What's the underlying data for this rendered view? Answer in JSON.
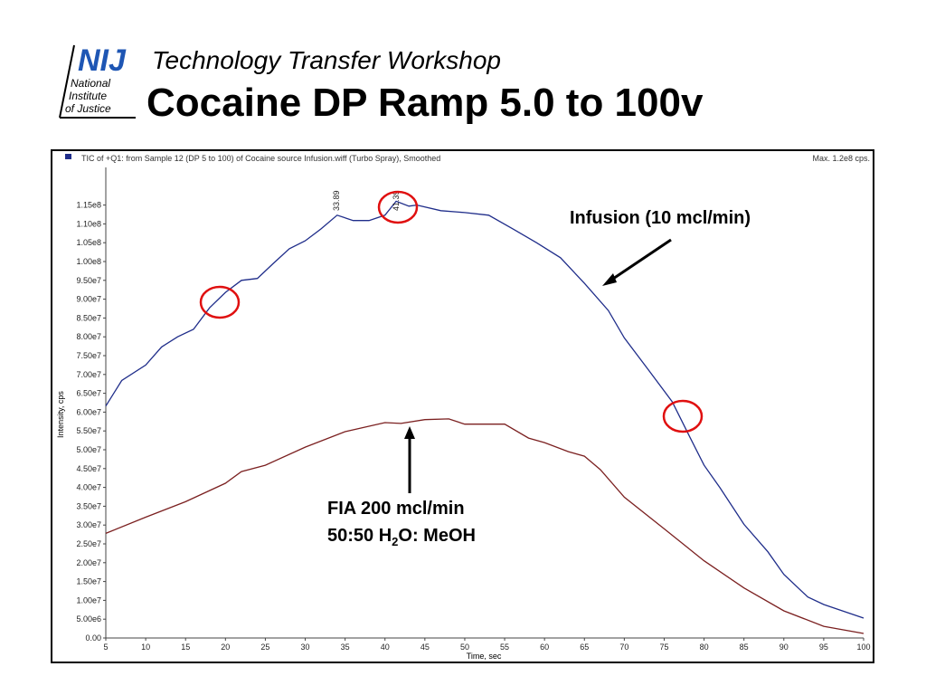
{
  "header": {
    "subtitle": "Technology Transfer Workshop",
    "title": "Cocaine DP Ramp 5.0 to 100v",
    "logo": {
      "mark": "NIJ",
      "lines": [
        "National",
        "Institute",
        "of Justice"
      ]
    }
  },
  "chart_data": {
    "type": "line",
    "title": "TIC of +Q1: from Sample 12 (DP 5 to 100) of Cocaine source Infusion.wiff (Turbo Spray), Smoothed",
    "max_label": "Max. 1.2e8 cps.",
    "x_label": "Time, sec",
    "y_label": "Intensity, cps",
    "xlim": [
      5,
      100
    ],
    "xticks": [
      5,
      10,
      15,
      20,
      25,
      30,
      35,
      40,
      45,
      50,
      55,
      60,
      65,
      70,
      75,
      80,
      85,
      90,
      95,
      100
    ],
    "ylim": [
      0,
      125000000
    ],
    "yticks": [
      {
        "value": 0,
        "label": "0.00"
      },
      {
        "value": 5000000,
        "label": "5.00e6"
      },
      {
        "value": 10000000,
        "label": "1.00e7"
      },
      {
        "value": 15000000,
        "label": "1.50e7"
      },
      {
        "value": 20000000,
        "label": "2.00e7"
      },
      {
        "value": 25000000,
        "label": "2.50e7"
      },
      {
        "value": 30000000,
        "label": "3.00e7"
      },
      {
        "value": 35000000,
        "label": "3.50e7"
      },
      {
        "value": 40000000,
        "label": "4.00e7"
      },
      {
        "value": 45000000,
        "label": "4.50e7"
      },
      {
        "value": 50000000,
        "label": "5.00e7"
      },
      {
        "value": 55000000,
        "label": "5.50e7"
      },
      {
        "value": 60000000,
        "label": "6.00e7"
      },
      {
        "value": 65000000,
        "label": "6.50e7"
      },
      {
        "value": 70000000,
        "label": "7.00e7"
      },
      {
        "value": 75000000,
        "label": "7.50e7"
      },
      {
        "value": 80000000,
        "label": "8.00e7"
      },
      {
        "value": 85000000,
        "label": "8.50e7"
      },
      {
        "value": 90000000,
        "label": "9.00e7"
      },
      {
        "value": 95000000,
        "label": "9.50e7"
      },
      {
        "value": 100000000,
        "label": "1.00e8"
      },
      {
        "value": 105000000,
        "label": "1.05e8"
      },
      {
        "value": 110000000,
        "label": "1.10e8"
      },
      {
        "value": 115000000,
        "label": "1.15e8"
      }
    ],
    "peak_labels": [
      33.89,
      41.39
    ],
    "series": [
      {
        "name": "Infusion",
        "color": "#1f2d8a",
        "x": [
          5,
          7,
          10,
          12,
          14,
          16,
          18,
          20,
          22,
          24,
          26,
          28,
          30,
          32,
          34,
          36,
          38,
          40,
          41.4,
          43,
          44,
          47,
          50,
          53,
          56,
          59,
          62,
          65,
          68,
          70,
          73,
          76,
          78,
          80,
          82,
          85,
          88,
          90,
          93,
          95,
          100
        ],
        "values": [
          61600000,
          68400000,
          72500000,
          77300000,
          80000000,
          82000000,
          87700000,
          91800000,
          95000000,
          95500000,
          99500000,
          103400000,
          105500000,
          108700000,
          112300000,
          110900000,
          110900000,
          112300000,
          116000000,
          114700000,
          115000000,
          113500000,
          113000000,
          112300000,
          108700000,
          105000000,
          101000000,
          94200000,
          87000000,
          79700000,
          71300000,
          62800000,
          54300000,
          45900000,
          39900000,
          30200000,
          22900000,
          16900000,
          10900000,
          8900000,
          5300000
        ]
      },
      {
        "name": "FIA",
        "color": "#7b2020",
        "x": [
          5,
          10,
          15,
          20,
          22,
          25,
          30,
          35,
          40,
          42,
          45,
          48,
          50,
          53,
          55,
          58,
          60,
          63,
          65,
          67,
          70,
          75,
          80,
          85,
          90,
          95,
          100
        ],
        "values": [
          27800000,
          32100000,
          36200000,
          41100000,
          44200000,
          45900000,
          50700000,
          54800000,
          57200000,
          57000000,
          58000000,
          58200000,
          56800000,
          56800000,
          56800000,
          53100000,
          51900000,
          49500000,
          48300000,
          44700000,
          37400000,
          29000000,
          20500000,
          13300000,
          7200000,
          3100000,
          1200000
        ]
      }
    ],
    "annotations": {
      "infusion": "Infusion (10 mcl/min)",
      "fia_line1": "FIA 200 mcl/min",
      "fia_line2": [
        "50:50 H",
        "2",
        "O: MeOH"
      ]
    }
  }
}
